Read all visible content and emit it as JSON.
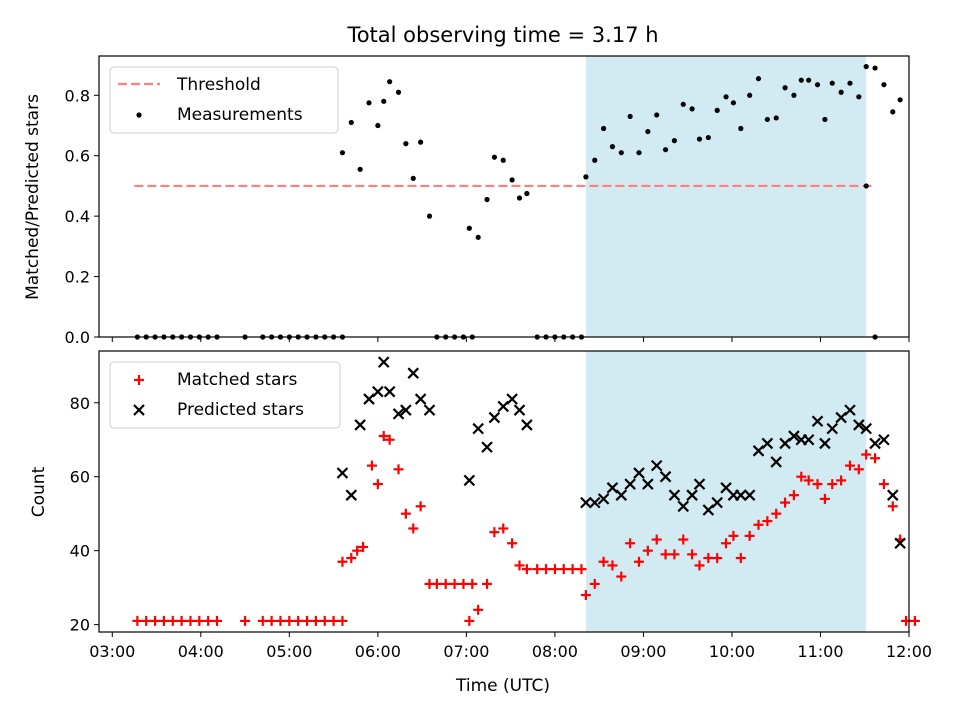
{
  "chart_data": [
    {
      "type": "scatter",
      "title": "Total observing time = 3.17 h",
      "xlabel": "",
      "ylabel": "Matched/Predicted stars",
      "xlim": [
        "02:51",
        "12:00"
      ],
      "ylim": [
        0.0,
        0.93
      ],
      "yticks": [
        "0.0",
        "0.2",
        "0.4",
        "0.6",
        "0.8"
      ],
      "shaded_interval": [
        "08:21",
        "11:31"
      ],
      "legend_position": "upper left",
      "threshold": {
        "name": "Threshold",
        "value": 0.5,
        "x_range": [
          "03:15",
          "11:35"
        ],
        "color": "#ff7f7f",
        "style": "dashed"
      },
      "series": [
        {
          "name": "Measurements",
          "marker": "dot",
          "color": "#000000",
          "points": [
            [
              "03:17",
              0
            ],
            [
              "03:23",
              0
            ],
            [
              "03:29",
              0
            ],
            [
              "03:35",
              0
            ],
            [
              "03:41",
              0
            ],
            [
              "03:47",
              0
            ],
            [
              "03:53",
              0
            ],
            [
              "03:59",
              0
            ],
            [
              "04:05",
              0
            ],
            [
              "04:11",
              0
            ],
            [
              "04:30",
              0
            ],
            [
              "04:42",
              0
            ],
            [
              "04:48",
              0
            ],
            [
              "04:54",
              0
            ],
            [
              "05:00",
              0
            ],
            [
              "05:06",
              0
            ],
            [
              "05:12",
              0
            ],
            [
              "05:18",
              0
            ],
            [
              "05:24",
              0
            ],
            [
              "05:30",
              0
            ],
            [
              "05:36",
              0
            ],
            [
              "05:36",
              0.61
            ],
            [
              "05:42",
              0.71
            ],
            [
              "05:48",
              0.555
            ],
            [
              "05:54",
              0.775
            ],
            [
              "06:00",
              0.7
            ],
            [
              "06:04",
              0.78
            ],
            [
              "06:08",
              0.845
            ],
            [
              "06:14",
              0.81
            ],
            [
              "06:19",
              0.64
            ],
            [
              "06:24",
              0.525
            ],
            [
              "06:29",
              0.645
            ],
            [
              "06:35",
              0.4
            ],
            [
              "06:40",
              0
            ],
            [
              "06:46",
              0
            ],
            [
              "06:52",
              0
            ],
            [
              "06:58",
              0
            ],
            [
              "07:04",
              0
            ],
            [
              "07:02",
              0.36
            ],
            [
              "07:08",
              0.33
            ],
            [
              "07:14",
              0.455
            ],
            [
              "07:19",
              0.595
            ],
            [
              "07:25",
              0.585
            ],
            [
              "07:31",
              0.52
            ],
            [
              "07:36",
              0.46
            ],
            [
              "07:41",
              0.475
            ],
            [
              "07:48",
              0
            ],
            [
              "07:54",
              0
            ],
            [
              "08:00",
              0
            ],
            [
              "08:06",
              0
            ],
            [
              "08:12",
              0
            ],
            [
              "08:18",
              0
            ],
            [
              "08:21",
              0.53
            ],
            [
              "08:27",
              0.585
            ],
            [
              "08:33",
              0.69
            ],
            [
              "08:39",
              0.63
            ],
            [
              "08:45",
              0.61
            ],
            [
              "08:51",
              0.73
            ],
            [
              "08:57",
              0.61
            ],
            [
              "09:03",
              0.68
            ],
            [
              "09:09",
              0.735
            ],
            [
              "09:15",
              0.62
            ],
            [
              "09:21",
              0.65
            ],
            [
              "09:27",
              0.77
            ],
            [
              "09:33",
              0.755
            ],
            [
              "09:38",
              0.655
            ],
            [
              "09:44",
              0.66
            ],
            [
              "09:50",
              0.75
            ],
            [
              "09:56",
              0.795
            ],
            [
              "10:01",
              0.775
            ],
            [
              "10:06",
              0.69
            ],
            [
              "10:12",
              0.8
            ],
            [
              "10:18",
              0.855
            ],
            [
              "10:24",
              0.72
            ],
            [
              "10:30",
              0.725
            ],
            [
              "10:36",
              0.825
            ],
            [
              "10:42",
              0.8
            ],
            [
              "10:47",
              0.85
            ],
            [
              "10:52",
              0.85
            ],
            [
              "10:58",
              0.835
            ],
            [
              "11:03",
              0.72
            ],
            [
              "11:08",
              0.84
            ],
            [
              "11:14",
              0.81
            ],
            [
              "11:20",
              0.84
            ],
            [
              "11:26",
              0.795
            ],
            [
              "11:31",
              0.895
            ],
            [
              "11:37",
              0.89
            ],
            [
              "11:43",
              0.835
            ],
            [
              "11:49",
              0.745
            ],
            [
              "11:54",
              0.785
            ],
            [
              "11:31",
              0.5
            ],
            [
              "11:37",
              0.0
            ]
          ]
        }
      ]
    },
    {
      "type": "scatter",
      "title": "",
      "xlabel": "Time (UTC)",
      "ylabel": "Count",
      "xlim": [
        "02:51",
        "12:00"
      ],
      "ylim": [
        18,
        94
      ],
      "yticks": [
        "20",
        "40",
        "60",
        "80"
      ],
      "xticks": [
        "03:00",
        "04:00",
        "05:00",
        "06:00",
        "07:00",
        "08:00",
        "09:00",
        "10:00",
        "11:00",
        "12:00"
      ],
      "shaded_interval": [
        "08:21",
        "11:31"
      ],
      "legend_position": "upper left",
      "series": [
        {
          "name": "Matched stars",
          "marker": "plus",
          "color": "#ff0000",
          "points": [
            [
              "03:17",
              21
            ],
            [
              "03:23",
              21
            ],
            [
              "03:29",
              21
            ],
            [
              "03:35",
              21
            ],
            [
              "03:41",
              21
            ],
            [
              "03:47",
              21
            ],
            [
              "03:53",
              21
            ],
            [
              "03:59",
              21
            ],
            [
              "04:05",
              21
            ],
            [
              "04:11",
              21
            ],
            [
              "04:30",
              21
            ],
            [
              "04:42",
              21
            ],
            [
              "04:48",
              21
            ],
            [
              "04:54",
              21
            ],
            [
              "05:00",
              21
            ],
            [
              "05:06",
              21
            ],
            [
              "05:12",
              21
            ],
            [
              "05:18",
              21
            ],
            [
              "05:24",
              21
            ],
            [
              "05:30",
              21
            ],
            [
              "05:36",
              21
            ],
            [
              "05:36",
              37
            ],
            [
              "05:42",
              38
            ],
            [
              "05:46",
              40
            ],
            [
              "05:50",
              41
            ],
            [
              "05:56",
              63
            ],
            [
              "06:00",
              58
            ],
            [
              "06:04",
              71
            ],
            [
              "06:08",
              70
            ],
            [
              "06:14",
              62
            ],
            [
              "06:19",
              50
            ],
            [
              "06:24",
              46
            ],
            [
              "06:29",
              52
            ],
            [
              "06:35",
              31
            ],
            [
              "06:40",
              31
            ],
            [
              "06:46",
              31
            ],
            [
              "06:52",
              31
            ],
            [
              "06:58",
              31
            ],
            [
              "07:04",
              31
            ],
            [
              "07:02",
              21
            ],
            [
              "07:08",
              24
            ],
            [
              "07:14",
              31
            ],
            [
              "07:19",
              45
            ],
            [
              "07:25",
              46
            ],
            [
              "07:31",
              42
            ],
            [
              "07:36",
              36
            ],
            [
              "07:41",
              35
            ],
            [
              "07:48",
              35
            ],
            [
              "07:54",
              35
            ],
            [
              "08:00",
              35
            ],
            [
              "08:06",
              35
            ],
            [
              "08:12",
              35
            ],
            [
              "08:18",
              35
            ],
            [
              "08:21",
              28
            ],
            [
              "08:27",
              31
            ],
            [
              "08:33",
              37
            ],
            [
              "08:39",
              36
            ],
            [
              "08:45",
              33
            ],
            [
              "08:51",
              42
            ],
            [
              "08:57",
              37
            ],
            [
              "09:03",
              40
            ],
            [
              "09:09",
              43
            ],
            [
              "09:15",
              39
            ],
            [
              "09:21",
              39
            ],
            [
              "09:27",
              43
            ],
            [
              "09:33",
              39
            ],
            [
              "09:38",
              36
            ],
            [
              "09:44",
              38
            ],
            [
              "09:50",
              38
            ],
            [
              "09:56",
              42
            ],
            [
              "10:01",
              44
            ],
            [
              "10:06",
              38
            ],
            [
              "10:12",
              44
            ],
            [
              "10:18",
              47
            ],
            [
              "10:24",
              48
            ],
            [
              "10:30",
              50
            ],
            [
              "10:36",
              53
            ],
            [
              "10:42",
              55
            ],
            [
              "10:47",
              60
            ],
            [
              "10:52",
              59
            ],
            [
              "10:58",
              58
            ],
            [
              "11:03",
              54
            ],
            [
              "11:08",
              58
            ],
            [
              "11:14",
              59
            ],
            [
              "11:20",
              63
            ],
            [
              "11:26",
              62
            ],
            [
              "11:31",
              66
            ],
            [
              "11:37",
              65
            ],
            [
              "11:43",
              58
            ],
            [
              "11:49",
              52
            ],
            [
              "11:54",
              43
            ],
            [
              "11:58",
              21
            ],
            [
              "12:04",
              21
            ]
          ]
        },
        {
          "name": "Predicted stars",
          "marker": "x",
          "color": "#000000",
          "points": [
            [
              "05:36",
              61
            ],
            [
              "05:42",
              55
            ],
            [
              "05:48",
              74
            ],
            [
              "05:54",
              81
            ],
            [
              "06:00",
              83
            ],
            [
              "06:04",
              91
            ],
            [
              "06:08",
              83
            ],
            [
              "06:14",
              77
            ],
            [
              "06:19",
              78
            ],
            [
              "06:24",
              88
            ],
            [
              "06:29",
              81
            ],
            [
              "06:35",
              78
            ],
            [
              "07:02",
              59
            ],
            [
              "07:08",
              73
            ],
            [
              "07:14",
              68
            ],
            [
              "07:19",
              76
            ],
            [
              "07:25",
              79
            ],
            [
              "07:31",
              81
            ],
            [
              "07:36",
              78
            ],
            [
              "07:41",
              74
            ],
            [
              "08:21",
              53
            ],
            [
              "08:27",
              53
            ],
            [
              "08:33",
              54
            ],
            [
              "08:39",
              57
            ],
            [
              "08:45",
              55
            ],
            [
              "08:51",
              58
            ],
            [
              "08:57",
              61
            ],
            [
              "09:03",
              58
            ],
            [
              "09:09",
              63
            ],
            [
              "09:15",
              60
            ],
            [
              "09:21",
              55
            ],
            [
              "09:27",
              52
            ],
            [
              "09:33",
              55
            ],
            [
              "09:38",
              58
            ],
            [
              "09:44",
              51
            ],
            [
              "09:50",
              53
            ],
            [
              "09:56",
              57
            ],
            [
              "10:01",
              55
            ],
            [
              "10:06",
              55
            ],
            [
              "10:12",
              55
            ],
            [
              "10:18",
              67
            ],
            [
              "10:24",
              69
            ],
            [
              "10:30",
              64
            ],
            [
              "10:36",
              69
            ],
            [
              "10:42",
              71
            ],
            [
              "10:47",
              70
            ],
            [
              "10:52",
              70
            ],
            [
              "10:58",
              75
            ],
            [
              "11:03",
              69
            ],
            [
              "11:08",
              73
            ],
            [
              "11:14",
              76
            ],
            [
              "11:20",
              78
            ],
            [
              "11:26",
              74
            ],
            [
              "11:31",
              73
            ],
            [
              "11:37",
              69
            ],
            [
              "11:43",
              70
            ],
            [
              "11:49",
              55
            ],
            [
              "11:54",
              42
            ]
          ]
        }
      ]
    }
  ]
}
